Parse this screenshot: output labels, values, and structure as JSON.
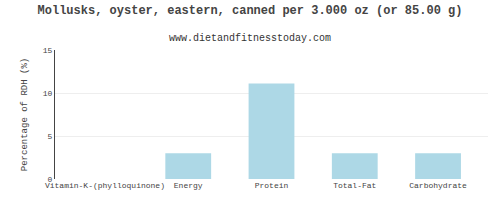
{
  "chart_data": {
    "type": "bar",
    "title": "Mollusks, oyster, eastern, canned per 3.000 oz (or 85.00 g)",
    "subtitle": "www.dietandfitnesstoday.com",
    "ylabel": "Percentage of RDH (%)",
    "categories": [
      "Vitamin-K-(phylloquinone)",
      "Energy",
      "Protein",
      "Total-Fat",
      "Carbohydrate"
    ],
    "values": [
      0,
      3.0,
      11.1,
      3.0,
      3.0
    ],
    "color": "#add8e6",
    "ylim": [
      0,
      15
    ],
    "yticks": [
      0,
      5,
      10,
      15
    ],
    "grid": true
  }
}
